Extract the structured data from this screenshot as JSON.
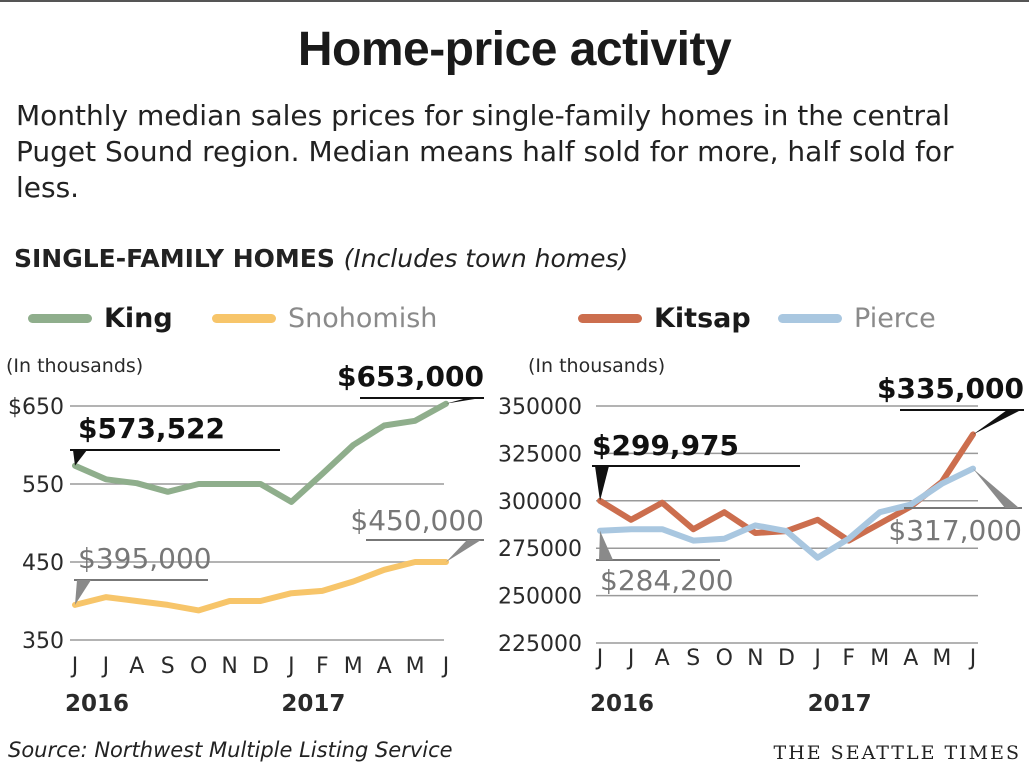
{
  "header": {
    "title": "Home-price activity",
    "subtitle": "Monthly median sales prices for single-family homes in the central Puget Sound region. Median means half sold for more, half sold for less.",
    "section_title": "SINGLE-FAMILY HOMES",
    "section_note": "(Includes town homes)"
  },
  "legend": {
    "king": "King",
    "snohomish": "Snohomish",
    "kitsap": "Kitsap",
    "pierce": "Pierce"
  },
  "footer": {
    "source": "Source: Northwest Multiple Listing Service",
    "brand": "THE SEATTLE TIMES"
  },
  "colors": {
    "king": "#8fae8c",
    "snohomish": "#f7c56a",
    "kitsap": "#cc6e4e",
    "pierce": "#a9c7e0",
    "grid": "#9a9a9a",
    "axis_text": "#2a2a2a",
    "light_label": "#777777"
  },
  "chart_data": [
    {
      "type": "line",
      "unit_note": "(In thousands)",
      "x": [
        "J",
        "J",
        "A",
        "S",
        "O",
        "N",
        "D",
        "J",
        "F",
        "M",
        "A",
        "M",
        "J"
      ],
      "x_years": [
        "2016",
        "2017"
      ],
      "yticks": [
        "350",
        "450",
        "550",
        "$650"
      ],
      "ytick_values": [
        350,
        450,
        550,
        650
      ],
      "ylim": [
        350,
        650
      ],
      "series": [
        {
          "name": "King",
          "color_key": "king",
          "values": [
            573.5,
            556,
            551,
            540,
            550,
            550,
            550,
            527,
            563,
            600,
            625,
            631,
            653
          ]
        },
        {
          "name": "Snohomish",
          "color_key": "snohomish",
          "values": [
            395,
            405,
            400,
            395,
            388,
            400,
            400,
            410,
            413,
            425,
            440,
            450,
            450
          ]
        }
      ],
      "annotations": [
        {
          "series": 0,
          "index": 0,
          "text": "$573,522",
          "bold": true
        },
        {
          "series": 0,
          "index": 12,
          "text": "$653,000",
          "bold": true
        },
        {
          "series": 1,
          "index": 0,
          "text": "$395,000",
          "bold": false
        },
        {
          "series": 1,
          "index": 12,
          "text": "$450,000",
          "bold": false
        }
      ]
    },
    {
      "type": "line",
      "unit_note": "(In thousands)",
      "x": [
        "J",
        "J",
        "A",
        "S",
        "O",
        "N",
        "D",
        "J",
        "F",
        "M",
        "A",
        "M",
        "J"
      ],
      "x_years": [
        "2016",
        "2017"
      ],
      "yticks": [
        "225000",
        "250000",
        "275000",
        "300000",
        "325000",
        "350000"
      ],
      "ytick_values": [
        225000,
        250000,
        275000,
        300000,
        325000,
        350000
      ],
      "ylim": [
        225000,
        350000
      ],
      "series": [
        {
          "name": "Kitsap",
          "color_key": "kitsap",
          "values": [
            299975,
            290000,
            299000,
            285000,
            294000,
            283000,
            284000,
            290000,
            279000,
            288000,
            297000,
            310000,
            335000
          ]
        },
        {
          "name": "Pierce",
          "color_key": "pierce",
          "values": [
            284200,
            285000,
            285000,
            279000,
            280000,
            287000,
            284000,
            270000,
            280000,
            294000,
            298000,
            309000,
            317000
          ]
        }
      ],
      "annotations": [
        {
          "series": 0,
          "index": 0,
          "text": "$299,975",
          "bold": true
        },
        {
          "series": 0,
          "index": 12,
          "text": "$335,000",
          "bold": true
        },
        {
          "series": 1,
          "index": 0,
          "text": "$284,200",
          "bold": false
        },
        {
          "series": 1,
          "index": 12,
          "text": "$317,000",
          "bold": false
        }
      ]
    }
  ]
}
